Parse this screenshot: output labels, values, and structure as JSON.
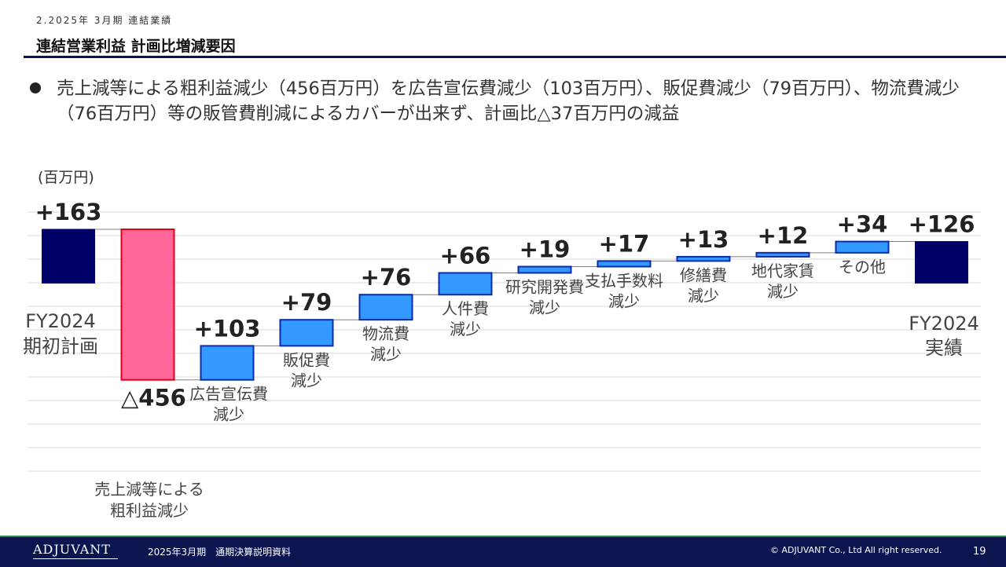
{
  "header": {
    "section_label": "2.2025年 3月期 連結業績",
    "title": "連結営業利益 計画比増減要因"
  },
  "bullet": "売上減等による粗利益減少（456百万円）を広告宣伝費減少（103百万円）、販促費減少（79百万円）、物流費減少（76百万円）等の販管費削減によるカバーが出来ず、計画比△37百万円の減益",
  "chart_data": {
    "type": "bar",
    "subtype": "waterfall",
    "unit_label": "(百万円)",
    "grid": true,
    "ylim": [
      -484,
      163
    ],
    "categories": [
      [
        "FY2024",
        "期初計画"
      ],
      [
        "売上減等による",
        "粗利益減少"
      ],
      [
        "広告宣伝費",
        "減少"
      ],
      [
        "販促費",
        "減少"
      ],
      [
        "物流費",
        "減少"
      ],
      [
        "人件費",
        "減少"
      ],
      [
        "研究開発費",
        "減少"
      ],
      [
        "支払手数料",
        "減少"
      ],
      [
        "修繕費",
        "減少"
      ],
      [
        "地代家賃",
        "減少"
      ],
      [
        "その他"
      ],
      [
        "FY2024",
        "実績"
      ]
    ],
    "values": [
      163,
      -456,
      103,
      79,
      76,
      66,
      19,
      17,
      13,
      12,
      34,
      126
    ],
    "value_labels": [
      "+163",
      "△456",
      "+103",
      "+79",
      "+76",
      "+66",
      "+19",
      "+17",
      "+13",
      "+12",
      "+34",
      "+126"
    ],
    "kinds": [
      "total",
      "decrease",
      "increase",
      "increase",
      "increase",
      "increase",
      "increase",
      "increase",
      "increase",
      "increase",
      "increase",
      "total"
    ],
    "colors": {
      "total": "#000066",
      "decrease": "#ff6699",
      "decrease_border": "#e0001a",
      "increase": "#3399ff",
      "increase_border": "#0b2ba8",
      "grid": "#d9d9d9",
      "connector": "#808080"
    }
  },
  "footer": {
    "logo": "ADJUVANT",
    "doc_title": "2025年3月期　通期決算説明資料",
    "copyright": "© ADJUVANT Co., Ltd All right reserved.",
    "page": "19"
  }
}
